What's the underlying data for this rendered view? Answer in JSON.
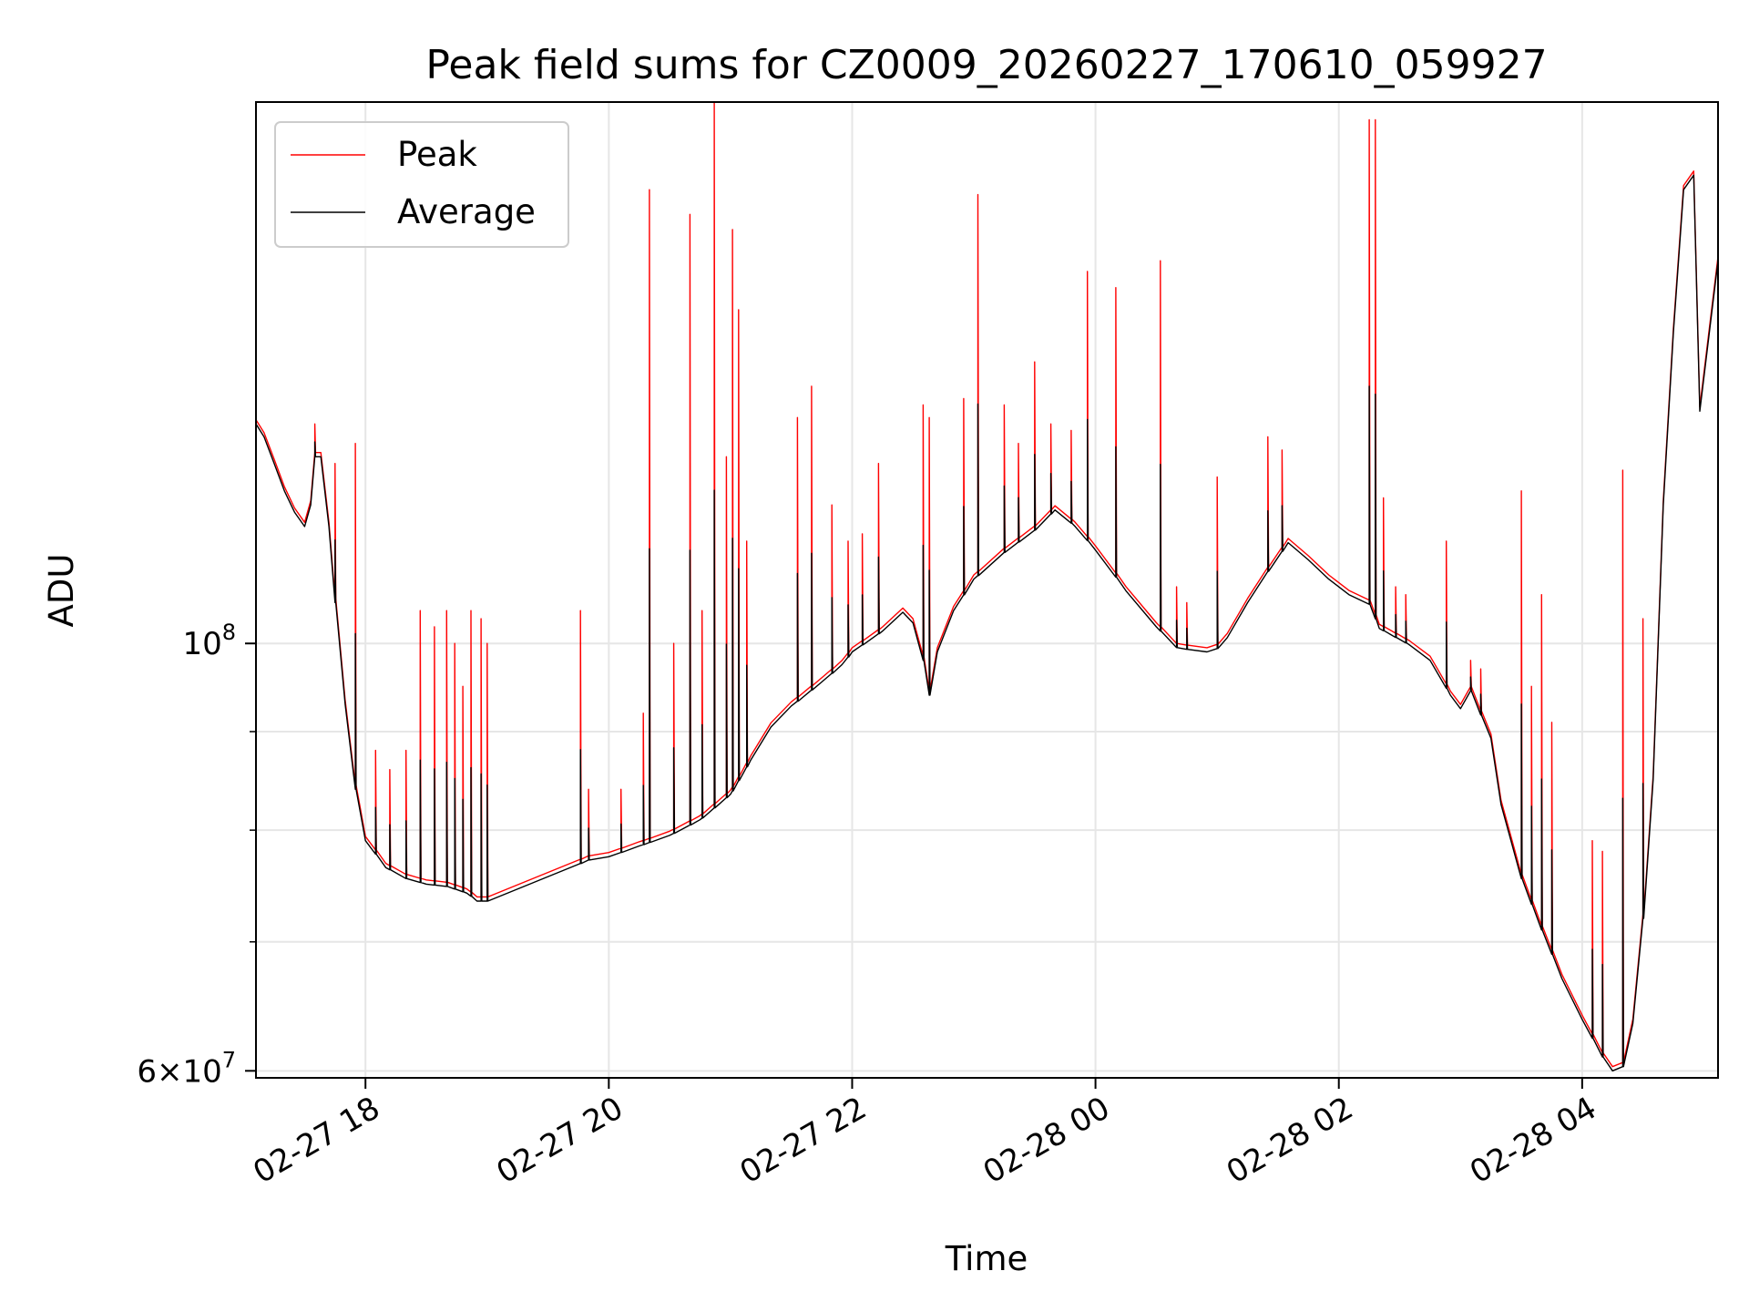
{
  "chart_data": {
    "type": "line",
    "title": "Peak field sums for CZ0009_20260227_170610_059927",
    "xlabel": "Time",
    "ylabel": "ADU",
    "yscale": "log",
    "xlim": [
      "2026-02-27 17:06",
      "2026-02-28 05:07"
    ],
    "ylim": [
      59500000,
      191000000
    ],
    "grid": true,
    "legend_position": "top-left",
    "x_ticks": [
      {
        "value": "2026-02-27 18:00",
        "label": "02-27 18"
      },
      {
        "value": "2026-02-27 20:00",
        "label": "02-27 20"
      },
      {
        "value": "2026-02-27 22:00",
        "label": "02-27 22"
      },
      {
        "value": "2026-02-28 00:00",
        "label": "02-28 00"
      },
      {
        "value": "2026-02-28 02:00",
        "label": "02-28 02"
      },
      {
        "value": "2026-02-28 04:00",
        "label": "02-28 04"
      }
    ],
    "y_major_ticks": [
      {
        "value": 60000000,
        "mantissa": "6",
        "exponent": "7"
      },
      {
        "value": 100000000,
        "mantissa": "",
        "exponent": "8"
      }
    ],
    "y_minor_gridlines": [
      70000000,
      80000000,
      90000000
    ],
    "series": [
      {
        "name": "Peak",
        "color": "#ff0000",
        "baseline_offset": 1.005,
        "spikes": [
          [
            "2026-02-27 17:35",
            130000000
          ],
          [
            "2026-02-27 17:45",
            124000000
          ],
          [
            "2026-02-27 17:55",
            127000000
          ],
          [
            "2026-02-27 18:05",
            88000000
          ],
          [
            "2026-02-27 18:12",
            86000000
          ],
          [
            "2026-02-27 18:20",
            88000000
          ],
          [
            "2026-02-27 18:27",
            104000000
          ],
          [
            "2026-02-27 18:34",
            102000000
          ],
          [
            "2026-02-27 18:40",
            104000000
          ],
          [
            "2026-02-27 18:44",
            100000000
          ],
          [
            "2026-02-27 18:48",
            95000000
          ],
          [
            "2026-02-27 18:52",
            104000000
          ],
          [
            "2026-02-27 18:57",
            103000000
          ],
          [
            "2026-02-27 19:00",
            100000000
          ],
          [
            "2026-02-27 19:46",
            104000000
          ],
          [
            "2026-02-27 19:50",
            84000000
          ],
          [
            "2026-02-27 20:06",
            84000000
          ],
          [
            "2026-02-27 20:17",
            92000000
          ],
          [
            "2026-02-27 20:20",
            172000000
          ],
          [
            "2026-02-27 20:32",
            100000000
          ],
          [
            "2026-02-27 20:40",
            167000000
          ],
          [
            "2026-02-27 20:46",
            104000000
          ],
          [
            "2026-02-27 20:52",
            191000000
          ],
          [
            "2026-02-27 20:58",
            125000000
          ],
          [
            "2026-02-27 21:01",
            164000000
          ],
          [
            "2026-02-27 21:04",
            149000000
          ],
          [
            "2026-02-27 21:08",
            113000000
          ],
          [
            "2026-02-27 21:33",
            131000000
          ],
          [
            "2026-02-27 21:40",
            136000000
          ],
          [
            "2026-02-27 21:50",
            118000000
          ],
          [
            "2026-02-27 21:58",
            113000000
          ],
          [
            "2026-02-27 22:05",
            114000000
          ],
          [
            "2026-02-27 22:13",
            124000000
          ],
          [
            "2026-02-27 22:35",
            133000000
          ],
          [
            "2026-02-27 22:38",
            131000000
          ],
          [
            "2026-02-27 22:55",
            134000000
          ],
          [
            "2026-02-27 23:02",
            171000000
          ],
          [
            "2026-02-27 23:15",
            133000000
          ],
          [
            "2026-02-27 23:22",
            127000000
          ],
          [
            "2026-02-27 23:30",
            140000000
          ],
          [
            "2026-02-27 23:38",
            130000000
          ],
          [
            "2026-02-27 23:48",
            129000000
          ],
          [
            "2026-02-27 23:56",
            156000000
          ],
          [
            "2026-02-28 00:10",
            153000000
          ],
          [
            "2026-02-28 00:32",
            158000000
          ],
          [
            "2026-02-28 00:40",
            107000000
          ],
          [
            "2026-02-28 00:45",
            105000000
          ],
          [
            "2026-02-28 01:00",
            122000000
          ],
          [
            "2026-02-28 01:25",
            128000000
          ],
          [
            "2026-02-28 01:32",
            126000000
          ],
          [
            "2026-02-28 02:15",
            187000000
          ],
          [
            "2026-02-28 02:18",
            187000000
          ],
          [
            "2026-02-28 02:22",
            119000000
          ],
          [
            "2026-02-28 02:28",
            107000000
          ],
          [
            "2026-02-28 02:33",
            106000000
          ],
          [
            "2026-02-28 02:53",
            113000000
          ],
          [
            "2026-02-28 03:05",
            98000000
          ],
          [
            "2026-02-28 03:10",
            97000000
          ],
          [
            "2026-02-28 03:30",
            120000000
          ],
          [
            "2026-02-28 03:35",
            95000000
          ],
          [
            "2026-02-28 03:40",
            106000000
          ],
          [
            "2026-02-28 03:45",
            91000000
          ],
          [
            "2026-02-28 04:05",
            79000000
          ],
          [
            "2026-02-28 04:10",
            78000000
          ],
          [
            "2026-02-28 04:20",
            123000000
          ],
          [
            "2026-02-28 04:30",
            103000000
          ]
        ]
      },
      {
        "name": "Average",
        "color": "#000000",
        "points": [
          [
            "2026-02-27 17:06",
            130000000
          ],
          [
            "2026-02-27 17:10",
            128000000
          ],
          [
            "2026-02-27 17:15",
            124000000
          ],
          [
            "2026-02-27 17:20",
            120000000
          ],
          [
            "2026-02-27 17:25",
            117000000
          ],
          [
            "2026-02-27 17:30",
            115000000
          ],
          [
            "2026-02-27 17:33",
            118000000
          ],
          [
            "2026-02-27 17:35",
            125000000
          ],
          [
            "2026-02-27 17:38",
            125000000
          ],
          [
            "2026-02-27 17:42",
            115000000
          ],
          [
            "2026-02-27 17:45",
            105000000
          ],
          [
            "2026-02-27 17:50",
            93000000
          ],
          [
            "2026-02-27 17:55",
            84000000
          ],
          [
            "2026-02-27 18:00",
            79000000
          ],
          [
            "2026-02-27 18:10",
            76500000
          ],
          [
            "2026-02-27 18:20",
            75500000
          ],
          [
            "2026-02-27 18:30",
            75000000
          ],
          [
            "2026-02-27 18:40",
            74800000
          ],
          [
            "2026-02-27 18:50",
            74200000
          ],
          [
            "2026-02-27 18:55",
            73500000
          ],
          [
            "2026-02-27 19:00",
            73500000
          ],
          [
            "2026-02-27 19:45",
            76800000
          ],
          [
            "2026-02-27 19:50",
            77200000
          ],
          [
            "2026-02-27 20:00",
            77500000
          ],
          [
            "2026-02-27 20:15",
            78500000
          ],
          [
            "2026-02-27 20:30",
            79500000
          ],
          [
            "2026-02-27 20:45",
            81000000
          ],
          [
            "2026-02-27 21:00",
            83500000
          ],
          [
            "2026-02-27 21:10",
            87000000
          ],
          [
            "2026-02-27 21:20",
            90500000
          ],
          [
            "2026-02-27 21:30",
            92800000
          ],
          [
            "2026-02-27 21:45",
            95500000
          ],
          [
            "2026-02-27 21:55",
            97500000
          ],
          [
            "2026-02-27 22:00",
            99000000
          ],
          [
            "2026-02-27 22:15",
            101500000
          ],
          [
            "2026-02-27 22:25",
            103800000
          ],
          [
            "2026-02-27 22:30",
            102500000
          ],
          [
            "2026-02-27 22:35",
            98000000
          ],
          [
            "2026-02-27 22:38",
            94000000
          ],
          [
            "2026-02-27 22:42",
            99000000
          ],
          [
            "2026-02-27 22:50",
            104000000
          ],
          [
            "2026-02-27 23:00",
            108000000
          ],
          [
            "2026-02-27 23:15",
            111500000
          ],
          [
            "2026-02-27 23:30",
            114500000
          ],
          [
            "2026-02-27 23:40",
            117300000
          ],
          [
            "2026-02-27 23:50",
            115000000
          ],
          [
            "2026-02-28 00:00",
            111800000
          ],
          [
            "2026-02-28 00:15",
            106500000
          ],
          [
            "2026-02-28 00:30",
            102000000
          ],
          [
            "2026-02-28 00:40",
            99500000
          ],
          [
            "2026-02-28 00:45",
            99300000
          ],
          [
            "2026-02-28 00:55",
            99000000
          ],
          [
            "2026-02-28 01:00",
            99400000
          ],
          [
            "2026-02-28 01:05",
            100700000
          ],
          [
            "2026-02-28 01:15",
            105000000
          ],
          [
            "2026-02-28 01:25",
            109000000
          ],
          [
            "2026-02-28 01:35",
            112800000
          ],
          [
            "2026-02-28 01:45",
            110500000
          ],
          [
            "2026-02-28 01:55",
            108000000
          ],
          [
            "2026-02-28 02:05",
            106000000
          ],
          [
            "2026-02-28 02:15",
            104800000
          ],
          [
            "2026-02-28 02:20",
            101800000
          ],
          [
            "2026-02-28 02:35",
            99800000
          ],
          [
            "2026-02-28 02:45",
            98000000
          ],
          [
            "2026-02-28 02:55",
            94000000
          ],
          [
            "2026-02-28 03:00",
            92500000
          ],
          [
            "2026-02-28 03:05",
            94500000
          ],
          [
            "2026-02-28 03:10",
            91800000
          ],
          [
            "2026-02-28 03:15",
            89300000
          ],
          [
            "2026-02-28 03:20",
            82500000
          ],
          [
            "2026-02-28 03:30",
            75500000
          ],
          [
            "2026-02-28 03:40",
            71000000
          ],
          [
            "2026-02-28 03:50",
            67000000
          ],
          [
            "2026-02-28 04:00",
            63800000
          ],
          [
            "2026-02-28 04:10",
            61000000
          ],
          [
            "2026-02-28 04:15",
            60000000
          ],
          [
            "2026-02-28 04:20",
            60300000
          ],
          [
            "2026-02-28 04:25",
            63500000
          ],
          [
            "2026-02-28 04:30",
            72000000
          ],
          [
            "2026-02-28 04:35",
            85000000
          ],
          [
            "2026-02-28 04:40",
            118000000
          ],
          [
            "2026-02-28 04:45",
            145000000
          ],
          [
            "2026-02-28 04:50",
            172000000
          ],
          [
            "2026-02-28 04:55",
            175000000
          ],
          [
            "2026-02-28 04:58",
            132000000
          ],
          [
            "2026-02-28 05:07",
            158000000
          ]
        ]
      }
    ]
  }
}
